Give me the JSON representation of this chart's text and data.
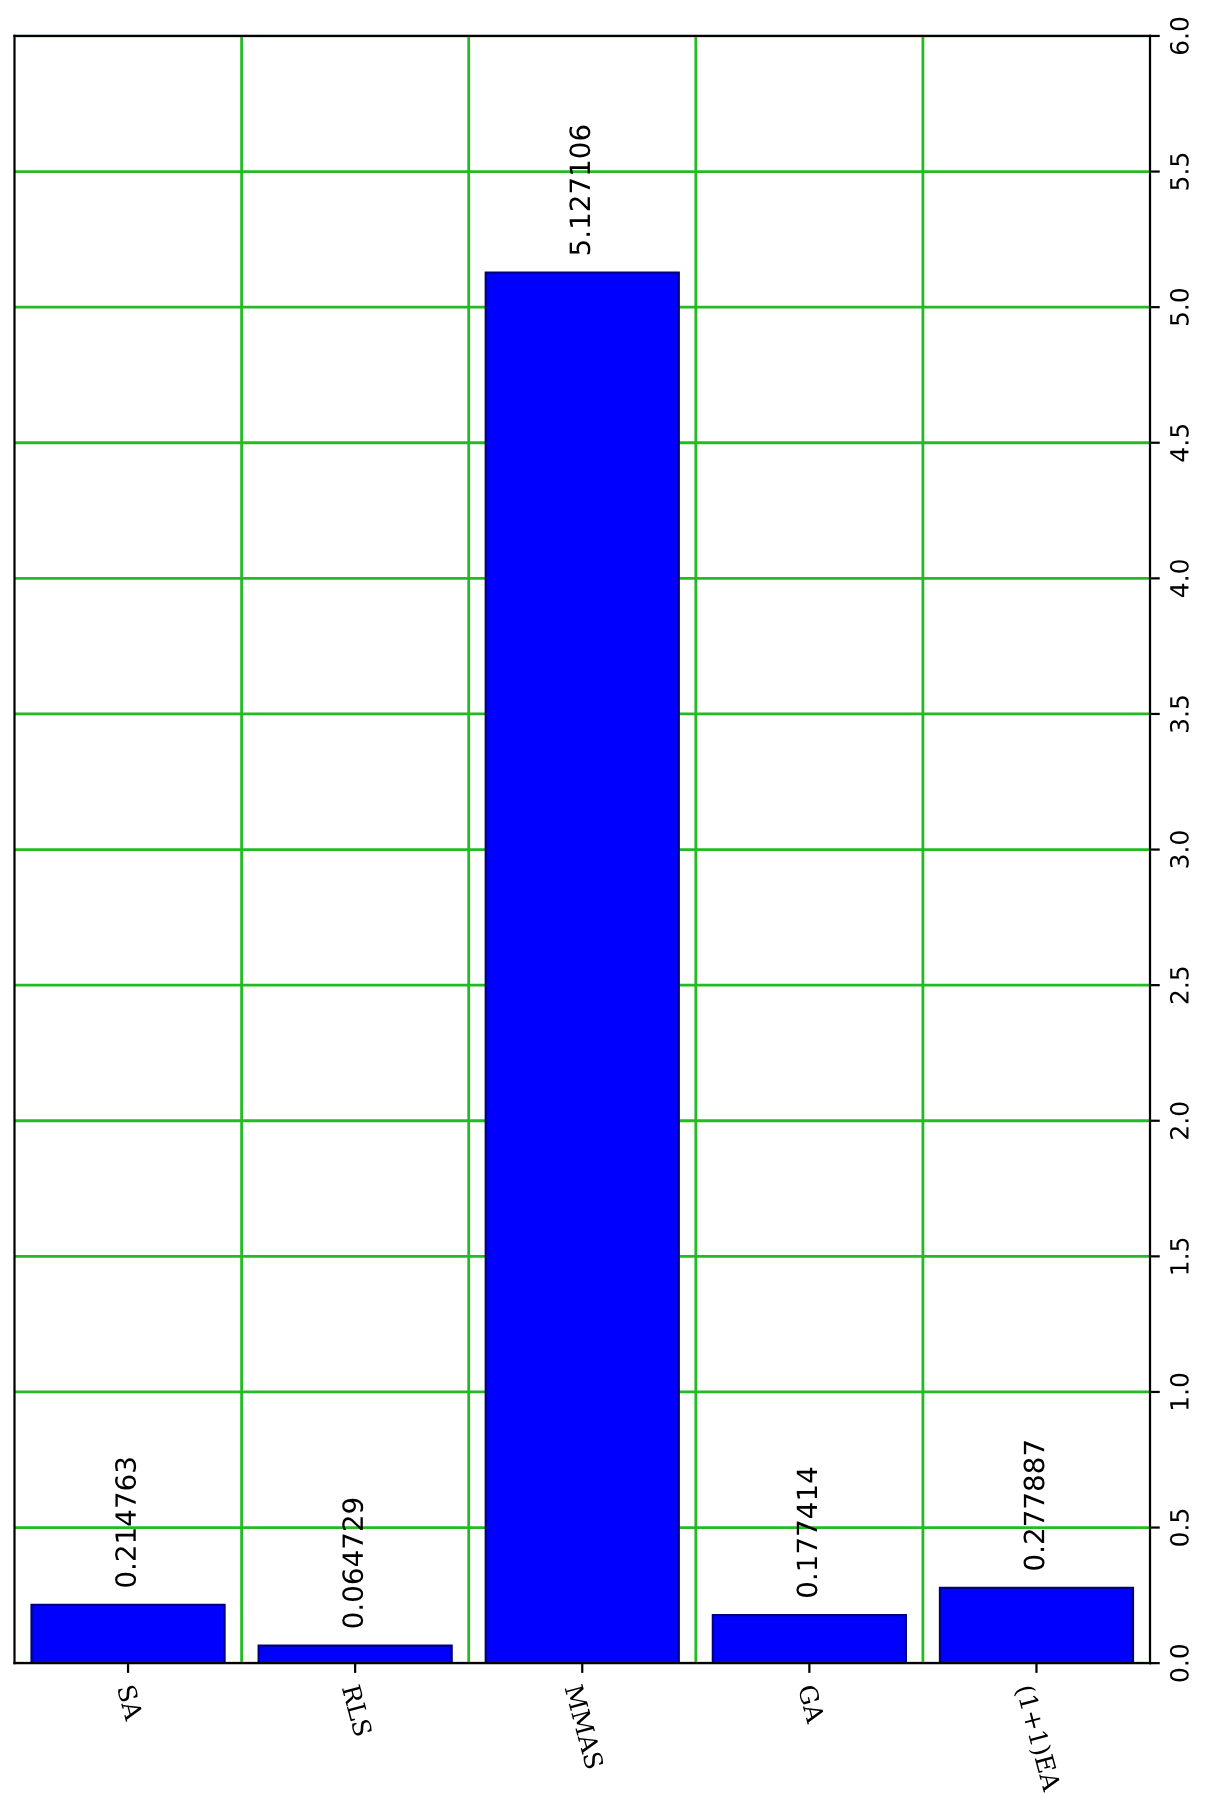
{
  "chart_data": {
    "type": "bar",
    "categories": [
      "SA",
      "RLS",
      "MMAS",
      "GA",
      "(1+1)EA"
    ],
    "values": [
      0.214763,
      0.064729,
      5.127106,
      0.177414,
      0.277887
    ],
    "color": "#0000ff",
    "data_labels": true,
    "grid": true,
    "legend": false,
    "ylim": [
      0,
      6
    ],
    "yticks": [
      {
        "value": 0,
        "label": "0.0"
      },
      {
        "value": 0.5,
        "label": "0.5"
      },
      {
        "value": 1,
        "label": "1.0"
      },
      {
        "value": 1.5,
        "label": "1.5"
      },
      {
        "value": 2,
        "label": "2.0"
      },
      {
        "value": 2.5,
        "label": "2.5"
      },
      {
        "value": 3,
        "label": "3.0"
      },
      {
        "value": 3.5,
        "label": "3.5"
      },
      {
        "value": 4,
        "label": "4.0"
      },
      {
        "value": 4.5,
        "label": "4.5"
      },
      {
        "value": 5,
        "label": "5.0"
      },
      {
        "value": 5.5,
        "label": "5.5"
      },
      {
        "value": 6,
        "label": "6.0"
      }
    ]
  }
}
